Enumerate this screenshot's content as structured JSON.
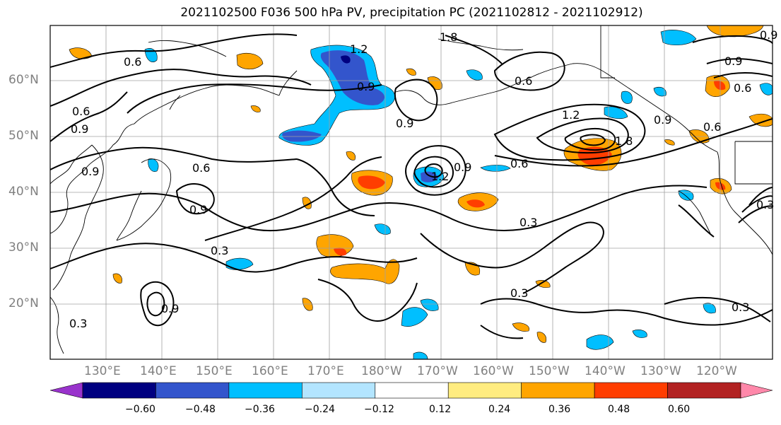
{
  "title": "2021102500 F036 500 hPa PV, precipitation PC (2021102812 - 2021102912)",
  "lat_labels": [
    "60°N",
    "50°N",
    "40°N",
    "30°N",
    "20°N"
  ],
  "lon_labels": [
    "130°E",
    "140°E",
    "150°E",
    "160°E",
    "170°E",
    "180°W",
    "170°W",
    "160°W",
    "150°W",
    "140°W",
    "130°W",
    "120°W"
  ],
  "colorbar": {
    "ticks": [
      "−0.60",
      "−0.48",
      "−0.36",
      "−0.24",
      "−0.12",
      "0.12",
      "0.24",
      "0.36",
      "0.48",
      "0.60"
    ],
    "colors": [
      "#9933cc",
      "#000080",
      "#3355cc",
      "#00bfff",
      "#b3e5ff",
      "#ffffff",
      "#ffec80",
      "#ffa500",
      "#ff3d00",
      "#b22222",
      "#ff88aa"
    ]
  },
  "contour_labels": [
    "0.6",
    "0.9",
    "1.2",
    "1.8",
    "0.3",
    "0.6",
    "0.9",
    "1.2",
    "0.6",
    "0.9",
    "0.3",
    "0.3",
    "0.3",
    "0.9",
    "0.6",
    "0.9",
    "0.3",
    "0.6",
    "0.9",
    "1.8",
    "0.9",
    "0.6",
    "0.3",
    "0.9",
    "1.2",
    "0.9",
    "0.6",
    "0.9"
  ]
}
